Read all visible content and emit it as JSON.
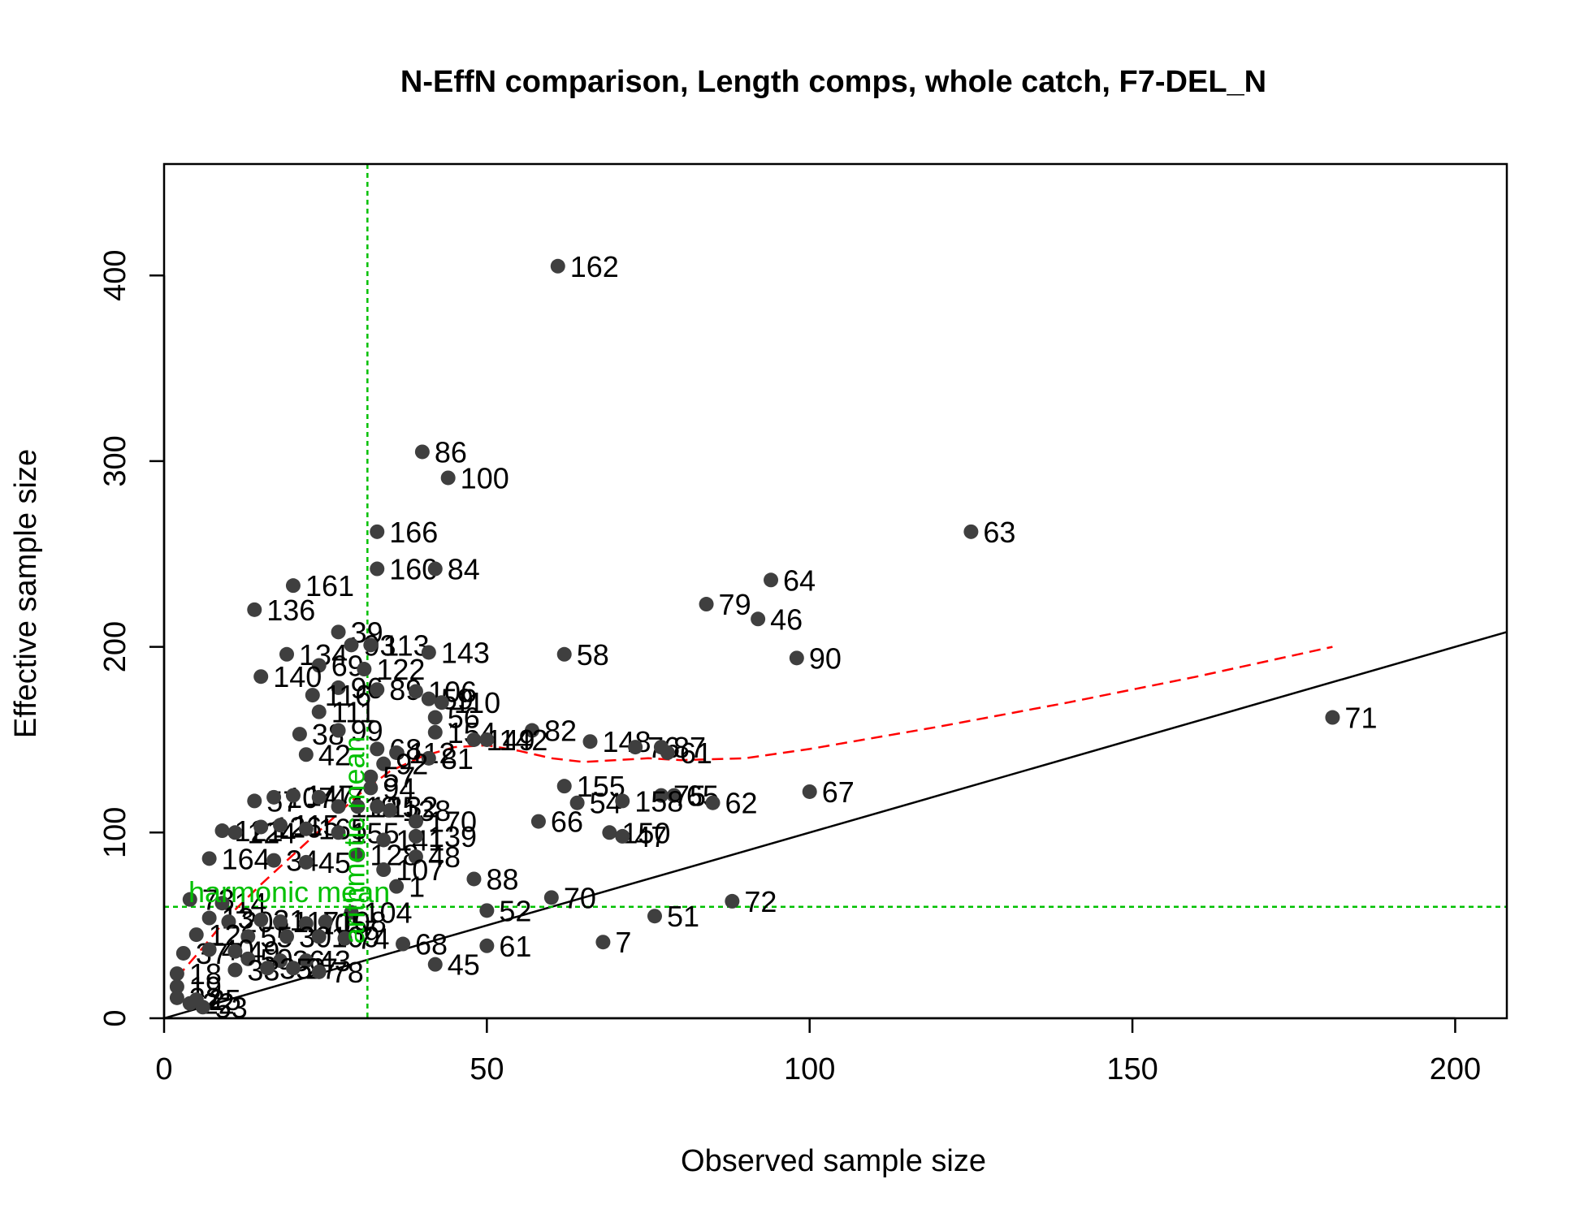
{
  "chart_data": {
    "type": "scatter",
    "title": "N-EffN comparison, Length comps, whole catch, F7-DEL_N",
    "xlabel": "Observed sample size",
    "ylabel": "Effective sample size",
    "xlim": [
      0,
      208
    ],
    "ylim": [
      0,
      460
    ],
    "x_ticks": [
      0,
      50,
      100,
      150,
      200
    ],
    "y_ticks": [
      0,
      100,
      200,
      300,
      400
    ],
    "grid": false,
    "legend": "none",
    "colors": {
      "points": "#3f3f3f",
      "identity_line": "#000000",
      "smoother": "#ff0000",
      "reference": "#00c000"
    },
    "points": [
      {
        "x": 61,
        "y": 405,
        "label": "162"
      },
      {
        "x": 40,
        "y": 305,
        "label": "86"
      },
      {
        "x": 44,
        "y": 291,
        "label": "100"
      },
      {
        "x": 33,
        "y": 262,
        "label": "166"
      },
      {
        "x": 33,
        "y": 242,
        "label": "160"
      },
      {
        "x": 42,
        "y": 242,
        "label": "84"
      },
      {
        "x": 20,
        "y": 233,
        "label": "161"
      },
      {
        "x": 14,
        "y": 220,
        "label": "136"
      },
      {
        "x": 125,
        "y": 262,
        "label": "63"
      },
      {
        "x": 94,
        "y": 236,
        "label": "64"
      },
      {
        "x": 84,
        "y": 223,
        "label": "79"
      },
      {
        "x": 92,
        "y": 215,
        "label": "46"
      },
      {
        "x": 98,
        "y": 194,
        "label": "90"
      },
      {
        "x": 62,
        "y": 196,
        "label": "58"
      },
      {
        "x": 181,
        "y": 162,
        "label": "71"
      },
      {
        "x": 27,
        "y": 208,
        "label": "39"
      },
      {
        "x": 29,
        "y": 201,
        "label": "93"
      },
      {
        "x": 32,
        "y": 201,
        "label": "113"
      },
      {
        "x": 41,
        "y": 197,
        "label": "143"
      },
      {
        "x": 19,
        "y": 196,
        "label": "134"
      },
      {
        "x": 24,
        "y": 190,
        "label": "69"
      },
      {
        "x": 31,
        "y": 188,
        "label": "122"
      },
      {
        "x": 15,
        "y": 184,
        "label": "140"
      },
      {
        "x": 27,
        "y": 178,
        "label": "96"
      },
      {
        "x": 33,
        "y": 177,
        "label": "89"
      },
      {
        "x": 39,
        "y": 176,
        "label": "106"
      },
      {
        "x": 23,
        "y": 174,
        "label": "116"
      },
      {
        "x": 41,
        "y": 172,
        "label": "59"
      },
      {
        "x": 43,
        "y": 170,
        "label": "110"
      },
      {
        "x": 24,
        "y": 165,
        "label": "111"
      },
      {
        "x": 42,
        "y": 162,
        "label": "56"
      },
      {
        "x": 21,
        "y": 153,
        "label": "38"
      },
      {
        "x": 27,
        "y": 155,
        "label": "99"
      },
      {
        "x": 42,
        "y": 154,
        "label": "154"
      },
      {
        "x": 57,
        "y": 155,
        "label": "82"
      },
      {
        "x": 48,
        "y": 150,
        "label": "149"
      },
      {
        "x": 50,
        "y": 150,
        "label": "142"
      },
      {
        "x": 66,
        "y": 149,
        "label": "148"
      },
      {
        "x": 73,
        "y": 146,
        "label": "76"
      },
      {
        "x": 77,
        "y": 146,
        "label": "87"
      },
      {
        "x": 78,
        "y": 143,
        "label": "61"
      },
      {
        "x": 22,
        "y": 142,
        "label": "42"
      },
      {
        "x": 33,
        "y": 145,
        "label": "68"
      },
      {
        "x": 36,
        "y": 143,
        "label": "112"
      },
      {
        "x": 41,
        "y": 140,
        "label": "81"
      },
      {
        "x": 34,
        "y": 137,
        "label": "92"
      },
      {
        "x": 32,
        "y": 130,
        "label": "57"
      },
      {
        "x": 32,
        "y": 124,
        "label": "94"
      },
      {
        "x": 62,
        "y": 125,
        "label": "155"
      },
      {
        "x": 77,
        "y": 120,
        "label": "75"
      },
      {
        "x": 79,
        "y": 120,
        "label": "65"
      },
      {
        "x": 64,
        "y": 116,
        "label": "54"
      },
      {
        "x": 71,
        "y": 117,
        "label": "158"
      },
      {
        "x": 85,
        "y": 116,
        "label": "62"
      },
      {
        "x": 100,
        "y": 122,
        "label": "67"
      },
      {
        "x": 14,
        "y": 117,
        "label": "57"
      },
      {
        "x": 17,
        "y": 119,
        "label": "107"
      },
      {
        "x": 20,
        "y": 120,
        "label": "147"
      },
      {
        "x": 24,
        "y": 119,
        "label": "47"
      },
      {
        "x": 27,
        "y": 114,
        "label": "119"
      },
      {
        "x": 30,
        "y": 114,
        "label": "125"
      },
      {
        "x": 33,
        "y": 114,
        "label": "132"
      },
      {
        "x": 35,
        "y": 112,
        "label": "138"
      },
      {
        "x": 39,
        "y": 106,
        "label": "170"
      },
      {
        "x": 58,
        "y": 106,
        "label": "66"
      },
      {
        "x": 69,
        "y": 100,
        "label": "150"
      },
      {
        "x": 71,
        "y": 98,
        "label": "47"
      },
      {
        "x": 9,
        "y": 101,
        "label": "121"
      },
      {
        "x": 11,
        "y": 100,
        "label": "124"
      },
      {
        "x": 15,
        "y": 103,
        "label": "126"
      },
      {
        "x": 18,
        "y": 104,
        "label": "115"
      },
      {
        "x": 22,
        "y": 102,
        "label": "165"
      },
      {
        "x": 27,
        "y": 100,
        "label": "155"
      },
      {
        "x": 34,
        "y": 96,
        "label": "141"
      },
      {
        "x": 39,
        "y": 98,
        "label": "139"
      },
      {
        "x": 7,
        "y": 86,
        "label": "164"
      },
      {
        "x": 17,
        "y": 85,
        "label": "34"
      },
      {
        "x": 22,
        "y": 84,
        "label": "45"
      },
      {
        "x": 30,
        "y": 88,
        "label": "128"
      },
      {
        "x": 39,
        "y": 87,
        "label": "48"
      },
      {
        "x": 34,
        "y": 80,
        "label": "107"
      },
      {
        "x": 48,
        "y": 75,
        "label": "88"
      },
      {
        "x": 36,
        "y": 71,
        "label": "1"
      },
      {
        "x": 60,
        "y": 65,
        "label": "70"
      },
      {
        "x": 88,
        "y": 63,
        "label": "72"
      },
      {
        "x": 4,
        "y": 64,
        "label": "73"
      },
      {
        "x": 9,
        "y": 62,
        "label": "14"
      },
      {
        "x": 50,
        "y": 58,
        "label": "52"
      },
      {
        "x": 76,
        "y": 55,
        "label": "51"
      },
      {
        "x": 29,
        "y": 57,
        "label": "104"
      },
      {
        "x": 7,
        "y": 54,
        "label": "13"
      },
      {
        "x": 10,
        "y": 52,
        "label": "20"
      },
      {
        "x": 15,
        "y": 53,
        "label": "31"
      },
      {
        "x": 18,
        "y": 52,
        "label": "117"
      },
      {
        "x": 22,
        "y": 51,
        "label": "105"
      },
      {
        "x": 25,
        "y": 52,
        "label": "108"
      },
      {
        "x": 5,
        "y": 45,
        "label": "12"
      },
      {
        "x": 13,
        "y": 44,
        "label": "55"
      },
      {
        "x": 19,
        "y": 44,
        "label": "30"
      },
      {
        "x": 24,
        "y": 44,
        "label": "109"
      },
      {
        "x": 28,
        "y": 43,
        "label": "74"
      },
      {
        "x": 37,
        "y": 40,
        "label": "68"
      },
      {
        "x": 50,
        "y": 39,
        "label": "61"
      },
      {
        "x": 68,
        "y": 41,
        "label": "7"
      },
      {
        "x": 3,
        "y": 35,
        "label": "37"
      },
      {
        "x": 7,
        "y": 37,
        "label": "40"
      },
      {
        "x": 11,
        "y": 36,
        "label": "49"
      },
      {
        "x": 13,
        "y": 32,
        "label": "50"
      },
      {
        "x": 18,
        "y": 31,
        "label": "36"
      },
      {
        "x": 22,
        "y": 31,
        "label": "43"
      },
      {
        "x": 42,
        "y": 29,
        "label": "45"
      },
      {
        "x": 2,
        "y": 24,
        "label": "18"
      },
      {
        "x": 11,
        "y": 26,
        "label": "33"
      },
      {
        "x": 16,
        "y": 27,
        "label": "35"
      },
      {
        "x": 20,
        "y": 27,
        "label": "27"
      },
      {
        "x": 24,
        "y": 25,
        "label": "78"
      },
      {
        "x": 2,
        "y": 17,
        "label": "19"
      },
      {
        "x": 2,
        "y": 11,
        "label": "32"
      },
      {
        "x": 4,
        "y": 8,
        "label": "22"
      },
      {
        "x": 6,
        "y": 6,
        "label": "53"
      },
      {
        "x": 5,
        "y": 10,
        "label": "25"
      }
    ],
    "identity_line": {
      "x": [
        0,
        208
      ],
      "y": [
        0,
        208
      ]
    },
    "smoother": {
      "x": [
        2,
        6,
        10,
        15,
        20,
        25,
        30,
        35,
        40,
        45,
        50,
        55,
        60,
        65,
        70,
        75,
        80,
        90,
        100,
        120,
        140,
        160,
        181
      ],
      "y": [
        22,
        38,
        55,
        72,
        88,
        104,
        120,
        133,
        141,
        146,
        147,
        144,
        140,
        138,
        139,
        140,
        139,
        140,
        145,
        157,
        170,
        184,
        200
      ]
    },
    "reference_lines": [
      {
        "orientation": "vertical",
        "value": 31.5,
        "label": "arithmetic mean"
      },
      {
        "orientation": "horizontal",
        "value": 60,
        "label": "harmonic mean"
      }
    ]
  }
}
